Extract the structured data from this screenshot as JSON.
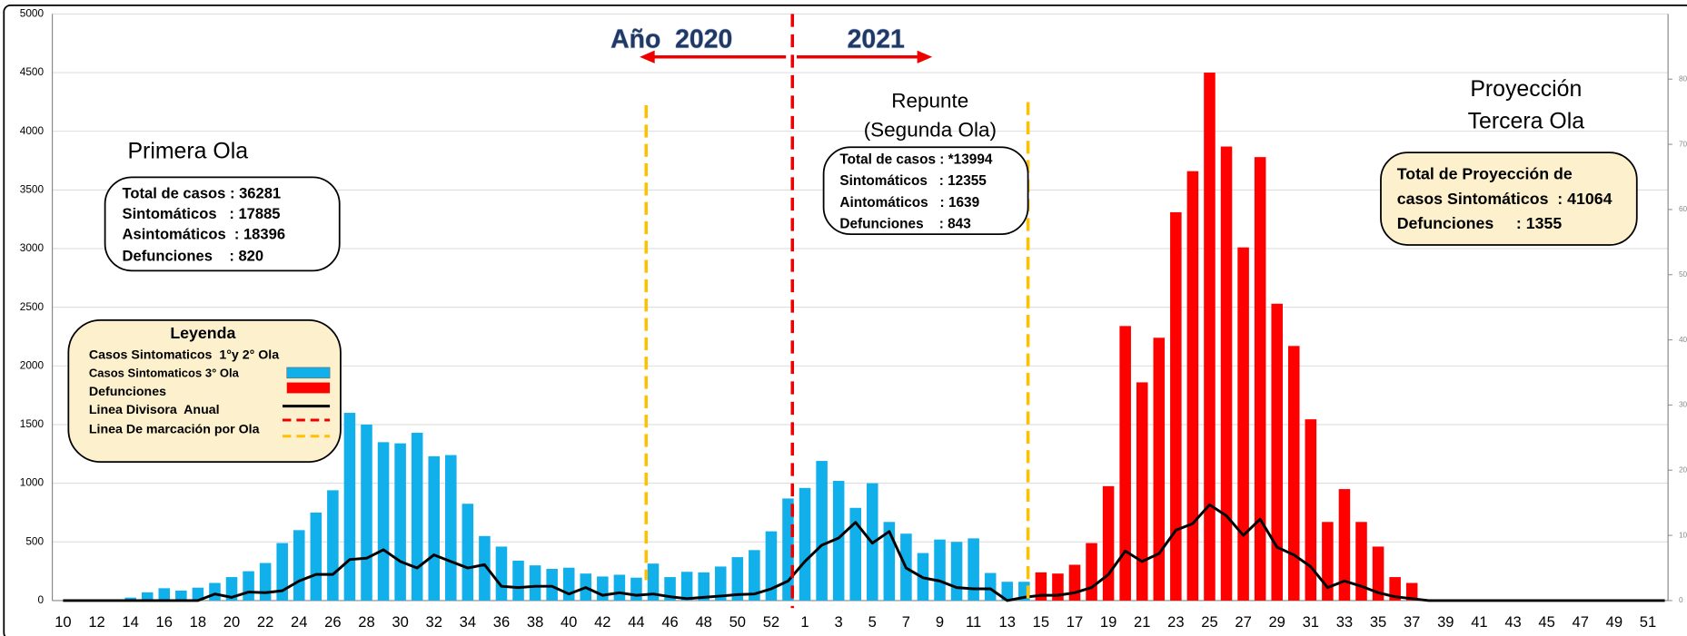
{
  "chart_data": {
    "type": "bar",
    "categories": [
      "10",
      null,
      "12",
      null,
      "14",
      null,
      "16",
      null,
      "18",
      null,
      "20",
      null,
      "22",
      null,
      "24",
      null,
      "26",
      null,
      "28",
      null,
      "30",
      null,
      "32",
      null,
      "34",
      null,
      "36",
      null,
      "38",
      null,
      "40",
      null,
      "42",
      null,
      "44",
      null,
      "46",
      null,
      "48",
      null,
      "50",
      null,
      "52",
      null,
      "1",
      null,
      "3",
      null,
      "5",
      null,
      "7",
      null,
      "9",
      null,
      "11",
      null,
      "13",
      null,
      "15",
      null,
      "17",
      null,
      "19",
      null,
      "21",
      null,
      "23",
      null,
      "25",
      null,
      "27",
      null,
      "29",
      null,
      "31",
      null,
      "33",
      null,
      "35",
      null,
      "37",
      null,
      "39",
      null,
      "41",
      null,
      "43",
      null,
      "45",
      null,
      "47",
      null,
      "49",
      null,
      "51",
      null
    ],
    "series": [
      {
        "name": "Casos Sintomaticos  1°y 2° Ola",
        "color": "#12b0ea",
        "values": [
          0,
          0,
          0,
          0,
          25,
          70,
          105,
          85,
          110,
          150,
          200,
          250,
          320,
          490,
          600,
          750,
          940,
          1600,
          1500,
          1350,
          1340,
          1430,
          1230,
          1240,
          825,
          550,
          460,
          340,
          300,
          270,
          280,
          230,
          205,
          220,
          195,
          315,
          200,
          245,
          240,
          290,
          370,
          430,
          590,
          870,
          960,
          1190,
          1020,
          790,
          1000,
          670,
          570,
          405,
          520,
          500,
          530,
          235,
          160,
          160,
          null,
          null,
          null,
          null,
          null,
          null,
          null,
          null,
          null,
          null,
          null,
          null,
          null,
          null,
          null,
          null,
          null,
          null,
          null,
          null,
          null,
          null,
          null,
          null,
          null,
          null,
          null,
          null,
          null,
          null,
          null,
          null,
          null,
          null,
          null,
          null,
          null,
          null
        ]
      },
      {
        "name": "Casos Sintomaticos 3° Ola",
        "color": "#ff0000",
        "values": [
          null,
          null,
          null,
          null,
          null,
          null,
          null,
          null,
          null,
          null,
          null,
          null,
          null,
          null,
          null,
          null,
          null,
          null,
          null,
          null,
          null,
          null,
          null,
          null,
          null,
          null,
          null,
          null,
          null,
          null,
          null,
          null,
          null,
          null,
          null,
          null,
          null,
          null,
          null,
          null,
          null,
          null,
          null,
          null,
          null,
          null,
          null,
          null,
          null,
          null,
          null,
          null,
          null,
          null,
          null,
          null,
          null,
          null,
          240,
          230,
          305,
          490,
          975,
          2340,
          1860,
          2240,
          3310,
          3660,
          4500,
          3870,
          3010,
          3780,
          2530,
          2170,
          1545,
          670,
          950,
          670,
          460,
          200,
          150,
          0,
          0,
          0,
          0,
          0,
          0,
          0,
          0,
          0,
          0,
          0,
          0,
          0,
          0,
          0
        ]
      },
      {
        "name": "Defunciones",
        "color": "#000000",
        "axis": "y2",
        "values": [
          0,
          0,
          0,
          0,
          0,
          0,
          0,
          0,
          0,
          1,
          0.5,
          1.3,
          1.2,
          1.5,
          3,
          4,
          4,
          6.3,
          6.5,
          7.8,
          6,
          5,
          7,
          6,
          5,
          5.5,
          2.2,
          2,
          2.2,
          2.2,
          1,
          2,
          0.8,
          1.2,
          0.8,
          1,
          0.6,
          0.3,
          0.5,
          0.7,
          0.9,
          1,
          1.8,
          3,
          6,
          8.5,
          9.6,
          12,
          8.8,
          10.6,
          5,
          3.5,
          3,
          2,
          1.8,
          1.8,
          0,
          0.5,
          0.8,
          0.8,
          1.2,
          2,
          4,
          7.6,
          6,
          7.2,
          10.8,
          11.8,
          14.7,
          13,
          10,
          12.5,
          8.2,
          7,
          5.2,
          2,
          3,
          2.2,
          1.2,
          0.6,
          0.3,
          0,
          0,
          0,
          0,
          0,
          0,
          0,
          0,
          0,
          0,
          0,
          0,
          0,
          0,
          0
        ]
      }
    ],
    "ylim": [
      0,
      5000
    ],
    "yticks": [
      0,
      500,
      1000,
      1500,
      2000,
      2500,
      3000,
      3500,
      4000,
      4500,
      5000
    ],
    "y2lim": [
      0,
      90
    ],
    "y2ticks": [
      0,
      10,
      20,
      30,
      40,
      50,
      60,
      70,
      80
    ],
    "grid": true,
    "annotations": {
      "year_left": "Año  2020",
      "year_right": "2021",
      "wave1_title": "Primera Ola",
      "wave1_box": [
        "Total de casos : 36281",
        "Sintomáticos   : 17885",
        "Asintomáticos  : 18396",
        "Defunciones    : 820"
      ],
      "wave2_title": [
        "Repunte",
        "(Segunda Ola)"
      ],
      "wave2_box": [
        "Total de casos : *13994",
        "Sintomáticos   : 12355",
        "Aintomáticos   : 1639",
        "Defunciones    : 843"
      ],
      "wave3_title": [
        "Proyección",
        "Tercera Ola"
      ],
      "wave3_box": [
        "Total de Proyección de",
        "casos Sintomáticos  : 41064",
        "Defunciones     : 1355"
      ],
      "legend_title": "Leyenda",
      "legend_extra": [
        "Linea Divisora  Anual",
        "Linea De marcación por Ola"
      ]
    }
  }
}
